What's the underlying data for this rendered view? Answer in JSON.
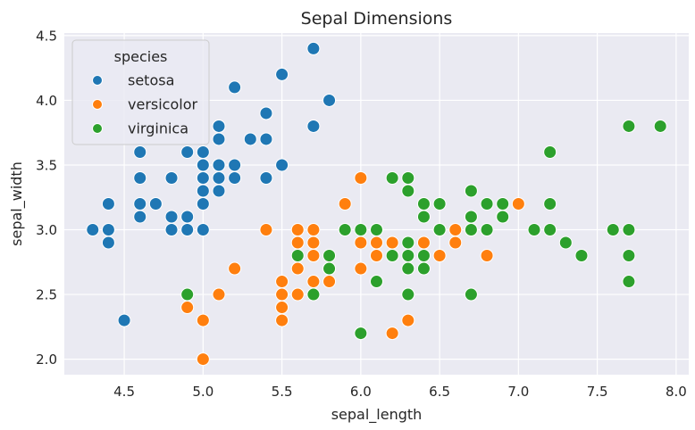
{
  "chart_data": {
    "type": "scatter",
    "title": "Sepal Dimensions",
    "xlabel": "sepal_length",
    "ylabel": "sepal_width",
    "xlim": [
      4.12,
      8.08
    ],
    "ylim": [
      1.88,
      4.52
    ],
    "xticks": [
      "4.5",
      "5.0",
      "5.5",
      "6.0",
      "6.5",
      "7.0",
      "7.5",
      "8.0"
    ],
    "yticks": [
      "2.0",
      "2.5",
      "3.0",
      "3.5",
      "4.0",
      "4.5"
    ],
    "grid": true,
    "legend": {
      "title": "species",
      "placement": "top-left"
    },
    "series": [
      {
        "name": "setosa",
        "color": "#1f77b4",
        "points": [
          [
            5.1,
            3.5
          ],
          [
            4.9,
            3.0
          ],
          [
            4.7,
            3.2
          ],
          [
            4.6,
            3.1
          ],
          [
            5.0,
            3.6
          ],
          [
            5.4,
            3.9
          ],
          [
            4.6,
            3.4
          ],
          [
            5.0,
            3.4
          ],
          [
            4.4,
            2.9
          ],
          [
            4.9,
            3.1
          ],
          [
            5.4,
            3.7
          ],
          [
            4.8,
            3.4
          ],
          [
            4.8,
            3.0
          ],
          [
            4.3,
            3.0
          ],
          [
            5.8,
            4.0
          ],
          [
            5.7,
            4.4
          ],
          [
            5.4,
            3.9
          ],
          [
            5.1,
            3.5
          ],
          [
            5.7,
            3.8
          ],
          [
            5.1,
            3.8
          ],
          [
            5.4,
            3.4
          ],
          [
            5.1,
            3.7
          ],
          [
            4.6,
            3.6
          ],
          [
            5.1,
            3.3
          ],
          [
            4.8,
            3.4
          ],
          [
            5.0,
            3.0
          ],
          [
            5.0,
            3.4
          ],
          [
            5.2,
            3.5
          ],
          [
            5.2,
            3.4
          ],
          [
            4.7,
            3.2
          ],
          [
            4.8,
            3.1
          ],
          [
            5.4,
            3.4
          ],
          [
            5.2,
            4.1
          ],
          [
            5.5,
            4.2
          ],
          [
            4.9,
            3.1
          ],
          [
            5.0,
            3.2
          ],
          [
            5.5,
            3.5
          ],
          [
            4.9,
            3.6
          ],
          [
            4.4,
            3.0
          ],
          [
            5.1,
            3.4
          ],
          [
            5.0,
            3.5
          ],
          [
            4.5,
            2.3
          ],
          [
            4.4,
            3.2
          ],
          [
            5.0,
            3.5
          ],
          [
            5.1,
            3.8
          ],
          [
            4.8,
            3.0
          ],
          [
            5.1,
            3.8
          ],
          [
            4.6,
            3.2
          ],
          [
            5.3,
            3.7
          ],
          [
            5.0,
            3.3
          ]
        ]
      },
      {
        "name": "versicolor",
        "color": "#ff7f0e",
        "points": [
          [
            7.0,
            3.2
          ],
          [
            6.4,
            3.2
          ],
          [
            6.9,
            3.1
          ],
          [
            5.5,
            2.3
          ],
          [
            6.5,
            2.8
          ],
          [
            5.7,
            2.8
          ],
          [
            6.3,
            3.3
          ],
          [
            4.9,
            2.4
          ],
          [
            6.6,
            2.9
          ],
          [
            5.2,
            2.7
          ],
          [
            5.0,
            2.0
          ],
          [
            5.9,
            3.0
          ],
          [
            6.0,
            2.2
          ],
          [
            6.1,
            2.9
          ],
          [
            5.6,
            2.9
          ],
          [
            6.7,
            3.1
          ],
          [
            5.6,
            3.0
          ],
          [
            5.8,
            2.7
          ],
          [
            6.2,
            2.2
          ],
          [
            5.6,
            2.5
          ],
          [
            5.9,
            3.2
          ],
          [
            6.1,
            2.8
          ],
          [
            6.3,
            2.5
          ],
          [
            6.1,
            2.8
          ],
          [
            6.4,
            2.9
          ],
          [
            6.6,
            3.0
          ],
          [
            6.8,
            2.8
          ],
          [
            6.7,
            3.0
          ],
          [
            6.0,
            2.9
          ],
          [
            5.7,
            2.6
          ],
          [
            5.5,
            2.4
          ],
          [
            5.5,
            2.4
          ],
          [
            5.8,
            2.7
          ],
          [
            6.0,
            2.7
          ],
          [
            5.4,
            3.0
          ],
          [
            6.0,
            3.4
          ],
          [
            6.7,
            3.1
          ],
          [
            6.3,
            2.3
          ],
          [
            5.6,
            3.0
          ],
          [
            5.5,
            2.5
          ],
          [
            5.5,
            2.6
          ],
          [
            6.1,
            3.0
          ],
          [
            5.8,
            2.6
          ],
          [
            5.0,
            2.3
          ],
          [
            5.6,
            2.7
          ],
          [
            5.7,
            3.0
          ],
          [
            5.7,
            2.9
          ],
          [
            6.2,
            2.9
          ],
          [
            5.1,
            2.5
          ],
          [
            5.7,
            2.8
          ]
        ]
      },
      {
        "name": "virginica",
        "color": "#2ca02c",
        "points": [
          [
            6.3,
            3.3
          ],
          [
            5.8,
            2.7
          ],
          [
            7.1,
            3.0
          ],
          [
            6.3,
            2.9
          ],
          [
            6.5,
            3.0
          ],
          [
            7.6,
            3.0
          ],
          [
            4.9,
            2.5
          ],
          [
            7.3,
            2.9
          ],
          [
            6.7,
            2.5
          ],
          [
            7.2,
            3.6
          ],
          [
            6.5,
            3.2
          ],
          [
            6.4,
            2.7
          ],
          [
            6.8,
            3.0
          ],
          [
            5.7,
            2.5
          ],
          [
            5.8,
            2.8
          ],
          [
            6.4,
            3.2
          ],
          [
            6.5,
            3.0
          ],
          [
            7.7,
            3.8
          ],
          [
            7.7,
            2.6
          ],
          [
            6.0,
            2.2
          ],
          [
            6.9,
            3.2
          ],
          [
            5.6,
            2.8
          ],
          [
            7.7,
            2.8
          ],
          [
            6.3,
            2.7
          ],
          [
            6.7,
            3.3
          ],
          [
            7.2,
            3.2
          ],
          [
            6.2,
            2.8
          ],
          [
            6.1,
            3.0
          ],
          [
            6.4,
            2.8
          ],
          [
            7.2,
            3.0
          ],
          [
            7.4,
            2.8
          ],
          [
            7.9,
            3.8
          ],
          [
            6.4,
            2.8
          ],
          [
            6.3,
            2.8
          ],
          [
            6.1,
            2.6
          ],
          [
            7.7,
            3.0
          ],
          [
            6.3,
            3.4
          ],
          [
            6.4,
            3.1
          ],
          [
            6.0,
            3.0
          ],
          [
            6.9,
            3.1
          ],
          [
            6.7,
            3.1
          ],
          [
            6.9,
            3.1
          ],
          [
            5.8,
            2.7
          ],
          [
            6.8,
            3.2
          ],
          [
            6.7,
            3.3
          ],
          [
            6.7,
            3.0
          ],
          [
            6.3,
            2.5
          ],
          [
            6.5,
            3.0
          ],
          [
            6.2,
            3.4
          ],
          [
            5.9,
            3.0
          ]
        ]
      }
    ]
  }
}
